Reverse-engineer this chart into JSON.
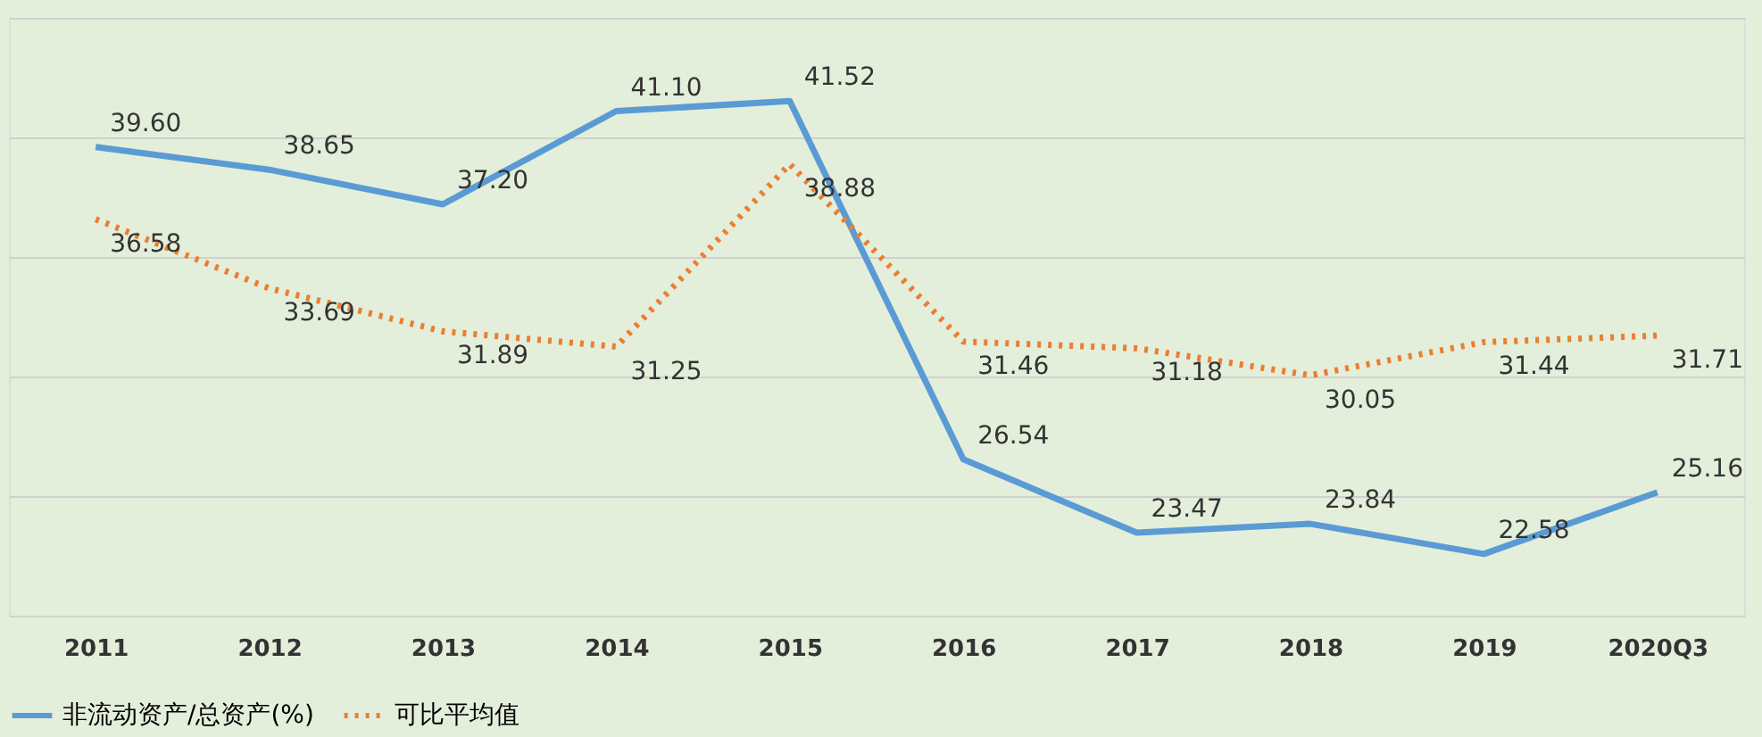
{
  "chart_data": {
    "type": "line",
    "categories": [
      "2011",
      "2012",
      "2013",
      "2014",
      "2015",
      "2016",
      "2017",
      "2018",
      "2019",
      "2020Q3"
    ],
    "series": [
      {
        "name": "非流动资产/总资产(%)",
        "color": "#5b9bd5",
        "line_style": "solid",
        "values": [
          39.6,
          38.65,
          37.2,
          41.1,
          41.52,
          26.54,
          23.47,
          23.84,
          22.58,
          25.16
        ],
        "value_labels": [
          "39.60",
          "38.65",
          "37.20",
          "41.10",
          "41.52",
          "26.54",
          "23.47",
          "23.84",
          "22.58",
          "25.16"
        ]
      },
      {
        "name": "可比平均值",
        "color": "#ed7d31",
        "line_style": "dotted",
        "values": [
          36.58,
          33.69,
          31.89,
          31.25,
          38.88,
          31.46,
          31.18,
          30.05,
          31.44,
          31.71
        ],
        "value_labels": [
          "36.58",
          "33.69",
          "31.89",
          "31.25",
          "38.88",
          "31.46",
          "31.18",
          "30.05",
          "31.44",
          "31.71"
        ]
      }
    ],
    "ylim": [
      20,
      45
    ],
    "yticks": [
      {
        "value": 20,
        "label": null
      },
      {
        "value": 25,
        "label": null
      },
      {
        "value": 30,
        "label": null
      },
      {
        "value": 35,
        "label": null
      },
      {
        "value": 40,
        "label": null
      },
      {
        "value": 45,
        "label": null
      }
    ],
    "tick_labels": "x",
    "grid": "y",
    "legend": "bottom",
    "marker": "none"
  }
}
